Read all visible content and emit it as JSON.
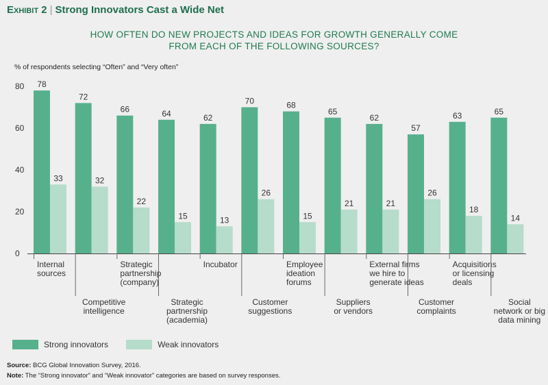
{
  "header": {
    "exhibit_label": "Exhibit 2",
    "exhibit_title": "Strong Innovators Cast a Wide Net"
  },
  "chart_data": {
    "type": "bar",
    "title_lines": [
      "HOW OFTEN DO NEW PROJECTS AND IDEAS FOR GROWTH GENERALLY COME",
      "FROM EACH OF THE FOLLOWING SOURCES?"
    ],
    "ylabel": "% of respondents selecting “Often” and “Very often”",
    "ylim": [
      0,
      80
    ],
    "yticks": [
      0,
      20,
      40,
      60,
      80
    ],
    "grid": false,
    "legend_position": "bottom-left",
    "categories": [
      [
        "Internal",
        "sources"
      ],
      [
        "Competitive",
        "intelligence"
      ],
      [
        "Strategic",
        "partnership",
        "(company)"
      ],
      [
        "Strategic",
        "partnership",
        "(academia)"
      ],
      [
        "Incubator"
      ],
      [
        "Customer",
        "suggestions"
      ],
      [
        "Employee",
        "ideation",
        "forums"
      ],
      [
        "Suppliers",
        "or vendors"
      ],
      [
        "External firms",
        "we hire to",
        "generate ideas"
      ],
      [
        "Customer",
        "complaints"
      ],
      [
        "Acquisitions",
        "or licensing",
        "deals"
      ],
      [
        "Social",
        "network or big",
        "data mining"
      ]
    ],
    "series": [
      {
        "name": "Strong innovators",
        "color": "#57b08c",
        "values": [
          78,
          72,
          66,
          64,
          62,
          70,
          68,
          65,
          62,
          57,
          63,
          65
        ]
      },
      {
        "name": "Weak innovators",
        "color": "#b6dccb",
        "values": [
          33,
          32,
          22,
          15,
          13,
          26,
          15,
          21,
          21,
          26,
          18,
          14
        ]
      }
    ]
  },
  "footer": {
    "source_label": "Source:",
    "source_text": "BCG Global Innovation Survey, 2016.",
    "note_label": "Note:",
    "note_text": "The “Strong innovator” and “Weak innovator” categories are based on survey responses."
  }
}
